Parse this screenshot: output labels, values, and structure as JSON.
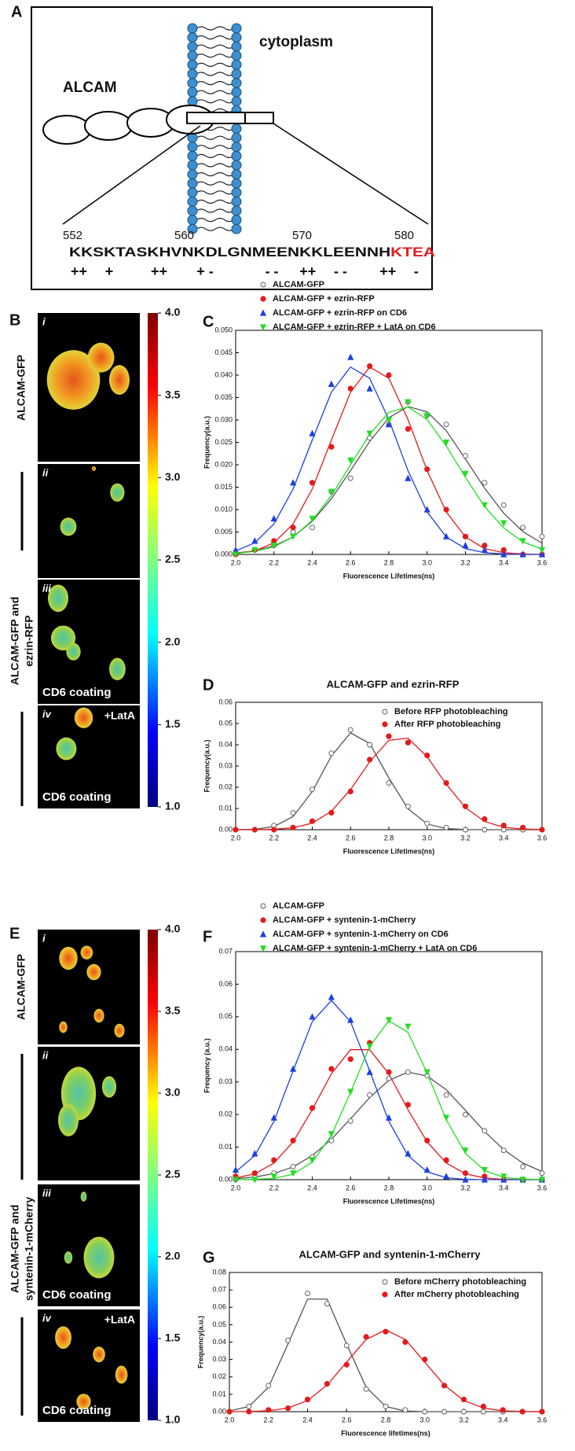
{
  "diagram": {
    "label": "A",
    "region": "cytoplasm",
    "protein": "ALCAM",
    "residue_numbers": [
      552,
      560,
      570,
      580
    ],
    "sequence": "KKSKTASKHVNKDLGNMEENKKLEENNH",
    "sequence_highlight": "KTEA",
    "charges": [
      "++",
      "+",
      "++",
      "+ -",
      "- -",
      "++",
      "- -",
      "++",
      "-"
    ]
  },
  "image_panels": [
    {
      "label": "B",
      "side_labels": [
        [
          "ALCAM-GFP"
        ],
        [
          "ALCAM-GFP and",
          "ezrin-RFP"
        ]
      ],
      "images": [
        {
          "numeral": "i"
        },
        {
          "numeral": "ii"
        },
        {
          "numeral": "iii",
          "note": "CD6 coating"
        },
        {
          "numeral": "iv",
          "treatment": "+LatA",
          "note": "CD6 coating"
        }
      ],
      "colorbar_ticks": [
        {
          "value": 4,
          "label": "4.0"
        },
        {
          "value": 3.5,
          "label": "3.5"
        },
        {
          "value": 3,
          "label": "3.0"
        },
        {
          "value": 2.5,
          "label": "2.5"
        },
        {
          "value": 2,
          "label": "2.0"
        },
        {
          "value": 1.5,
          "label": "1.5"
        },
        {
          "value": 1,
          "label": "1.0"
        }
      ]
    },
    {
      "label": "E",
      "side_labels": [
        [
          "ALCAM-GFP"
        ],
        [
          "ALCAM-GFP and",
          "syntenin-1-mCherry"
        ]
      ],
      "images": [
        {
          "numeral": "i"
        },
        {
          "numeral": "ii"
        },
        {
          "numeral": "iii",
          "note": "CD6 coating"
        },
        {
          "numeral": "iv",
          "treatment": "+LatA",
          "note": "CD6 coating"
        }
      ],
      "colorbar_ticks": [
        {
          "value": 4,
          "label": "4.0"
        },
        {
          "value": 3.5,
          "label": "3.5"
        },
        {
          "value": 3,
          "label": "3.0"
        },
        {
          "value": 2.5,
          "label": "2.5"
        },
        {
          "value": 2,
          "label": "2.0"
        },
        {
          "value": 1.5,
          "label": "1.5"
        },
        {
          "value": 1,
          "label": "1.0"
        }
      ]
    }
  ],
  "chart_data": [
    {
      "type": "scatter",
      "panel": "C",
      "x_label": "Fluorescence Lifetimes(ns)",
      "y_label": "Frequency(a.u.)",
      "legend": "top-left",
      "x": [
        2.0,
        2.1,
        2.2,
        2.3,
        2.4,
        2.5,
        2.6,
        2.7,
        2.8,
        2.9,
        3.0,
        3.1,
        3.2,
        3.3,
        3.4,
        3.5,
        3.6
      ],
      "xlim": [
        2.0,
        3.6
      ],
      "ylim": [
        0,
        0.05
      ],
      "xticks": [
        {
          "value": 2,
          "label": "2.0"
        },
        {
          "value": 2.2,
          "label": "2.2"
        },
        {
          "value": 2.4,
          "label": "2.4"
        },
        {
          "value": 2.6,
          "label": "2.6"
        },
        {
          "value": 2.8,
          "label": "2.8"
        },
        {
          "value": 3,
          "label": "3.0"
        },
        {
          "value": 3.2,
          "label": "3.2"
        },
        {
          "value": 3.4,
          "label": "3.4"
        },
        {
          "value": 3.6,
          "label": "3.6"
        }
      ],
      "yticks": [
        {
          "value": 0,
          "label": "0.000"
        },
        {
          "value": 0.005,
          "label": "0.005"
        },
        {
          "value": 0.01,
          "label": "0.010"
        },
        {
          "value": 0.015,
          "label": "0.015"
        },
        {
          "value": 0.02,
          "label": "0.020"
        },
        {
          "value": 0.025,
          "label": "0.025"
        },
        {
          "value": 0.03,
          "label": "0.030"
        },
        {
          "value": 0.035,
          "label": "0.035"
        },
        {
          "value": 0.04,
          "label": "0.040"
        },
        {
          "value": 0.045,
          "label": "0.045"
        },
        {
          "value": 0.05,
          "label": "0.050"
        }
      ],
      "series": [
        {
          "name": "ALCAM-GFP",
          "color": "#555555",
          "marker": "circle-open",
          "values": [
            0.0,
            0.001,
            0.002,
            0.005,
            0.006,
            0.014,
            0.017,
            0.026,
            0.029,
            0.034,
            0.031,
            0.029,
            0.022,
            0.016,
            0.011,
            0.006,
            0.004
          ],
          "fit": [
            0.0003,
            0.0008,
            0.0019,
            0.0039,
            0.0074,
            0.0124,
            0.0187,
            0.0252,
            0.0305,
            0.033,
            0.0318,
            0.0276,
            0.0213,
            0.0148,
            0.0092,
            0.0051,
            0.0025
          ]
        },
        {
          "name": "ALCAM-GFP + ezrin-RFP",
          "color": "#e41a1c",
          "marker": "circle",
          "values": [
            0.0,
            0.001,
            0.003,
            0.006,
            0.016,
            0.024,
            0.037,
            0.042,
            0.04,
            0.028,
            0.019,
            0.01,
            0.004,
            0.002,
            0.001,
            0.0,
            0.0
          ],
          "fit": [
            0.0002,
            0.0008,
            0.0026,
            0.0068,
            0.0146,
            0.0255,
            0.0362,
            0.0418,
            0.0393,
            0.0301,
            0.0187,
            0.0095,
            0.0039,
            0.0013,
            0.0004,
            0.0001,
            0
          ]
        },
        {
          "name": "ALCAM-GFP + ezrin-RFP on CD6",
          "color": "#1f3fe0",
          "marker": "triangle-up",
          "values": [
            0.001,
            0.003,
            0.008,
            0.016,
            0.027,
            0.038,
            0.044,
            0.037,
            0.029,
            0.017,
            0.01,
            0.004,
            0.002,
            0.001,
            0.0,
            0.0,
            0.0
          ],
          "fit": [
            0.0008,
            0.0026,
            0.0068,
            0.0146,
            0.0255,
            0.0362,
            0.0418,
            0.0393,
            0.0301,
            0.0187,
            0.0095,
            0.0039,
            0.0013,
            0.0004,
            0.0001,
            0,
            0
          ]
        },
        {
          "name": "ALCAM-GFP + ezrin-RFP + LatA on CD6",
          "color": "#22dd22",
          "marker": "triangle-down",
          "values": [
            0.0,
            0.001,
            0.002,
            0.004,
            0.008,
            0.014,
            0.021,
            0.027,
            0.03,
            0.034,
            0.031,
            0.025,
            0.018,
            0.011,
            0.007,
            0.003,
            0.001
          ],
          "fit": [
            0.0002,
            0.0007,
            0.0017,
            0.0039,
            0.0076,
            0.0131,
            0.02,
            0.0268,
            0.0317,
            0.0329,
            0.0301,
            0.0242,
            0.0172,
            0.0107,
            0.0059,
            0.0028,
            0.0012
          ]
        }
      ]
    },
    {
      "type": "scatter",
      "panel": "D",
      "title": "ALCAM-GFP and ezrin-RFP",
      "x_label": "Fluorescence Lifetimes(ns)",
      "y_label": "Frequency(a.u.)",
      "legend": "top-right",
      "x": [
        2.0,
        2.1,
        2.2,
        2.3,
        2.4,
        2.5,
        2.6,
        2.7,
        2.8,
        2.9,
        3.0,
        3.1,
        3.2,
        3.3,
        3.4,
        3.5,
        3.6
      ],
      "xlim": [
        2.0,
        3.6
      ],
      "ylim": [
        0,
        0.06
      ],
      "xticks": [
        {
          "value": 2,
          "label": "2.0"
        },
        {
          "value": 2.2,
          "label": "2.2"
        },
        {
          "value": 2.4,
          "label": "2.4"
        },
        {
          "value": 2.6,
          "label": "2.6"
        },
        {
          "value": 2.8,
          "label": "2.8"
        },
        {
          "value": 3,
          "label": "3.0"
        },
        {
          "value": 3.2,
          "label": "3.2"
        },
        {
          "value": 3.4,
          "label": "3.4"
        },
        {
          "value": 3.6,
          "label": "3.6"
        }
      ],
      "yticks": [
        {
          "value": 0,
          "label": "0.00"
        },
        {
          "value": 0.01,
          "label": "0.01"
        },
        {
          "value": 0.02,
          "label": "0.02"
        },
        {
          "value": 0.03,
          "label": "0.03"
        },
        {
          "value": 0.04,
          "label": "0.04"
        },
        {
          "value": 0.05,
          "label": "0.05"
        },
        {
          "value": 0.06,
          "label": "0.06"
        }
      ],
      "series": [
        {
          "name": "Before RFP photobleaching",
          "color": "#555555",
          "marker": "circle-open",
          "values": [
            0.0,
            0.0,
            0.002,
            0.008,
            0.019,
            0.036,
            0.047,
            0.04,
            0.022,
            0.011,
            0.003,
            0.001,
            0.0,
            0.0,
            0.0,
            0.0,
            0.0
          ],
          "fit": [
            0,
            0.0002,
            0.0015,
            0.0062,
            0.0179,
            0.0347,
            0.0456,
            0.0406,
            0.0244,
            0.0099,
            0.0027,
            0.0005,
            0.0001,
            0,
            0,
            0,
            0
          ]
        },
        {
          "name": "After RFP photobleaching",
          "color": "#e41a1c",
          "marker": "circle",
          "values": [
            0.0,
            0.0,
            0.0,
            0.001,
            0.004,
            0.008,
            0.018,
            0.033,
            0.044,
            0.041,
            0.035,
            0.022,
            0.011,
            0.005,
            0.002,
            0.001,
            0.0
          ],
          "fit": [
            0,
            0,
            0.0002,
            0.0009,
            0.0031,
            0.0087,
            0.0189,
            0.032,
            0.0421,
            0.0431,
            0.0344,
            0.0214,
            0.0104,
            0.0039,
            0.0011,
            0.0003,
            0.0001
          ]
        }
      ]
    },
    {
      "type": "scatter",
      "panel": "F",
      "x_label": "Fluorescence Lifetimes(ns)",
      "y_label": "Frequency (a.u.)",
      "legend": "top-left",
      "x": [
        2.0,
        2.1,
        2.2,
        2.3,
        2.4,
        2.5,
        2.6,
        2.7,
        2.8,
        2.9,
        3.0,
        3.1,
        3.2,
        3.3,
        3.4,
        3.5,
        3.6
      ],
      "xlim": [
        2.0,
        3.6
      ],
      "ylim": [
        0,
        0.07
      ],
      "xticks": [
        {
          "value": 2,
          "label": "2.0"
        },
        {
          "value": 2.2,
          "label": "2.2"
        },
        {
          "value": 2.4,
          "label": "2.4"
        },
        {
          "value": 2.6,
          "label": "2.6"
        },
        {
          "value": 2.8,
          "label": "2.8"
        },
        {
          "value": 3,
          "label": "3.0"
        },
        {
          "value": 3.2,
          "label": "3.2"
        },
        {
          "value": 3.4,
          "label": "3.4"
        },
        {
          "value": 3.6,
          "label": "3.6"
        }
      ],
      "yticks": [
        {
          "value": 0,
          "label": "0.00"
        },
        {
          "value": 0.01,
          "label": "0.01"
        },
        {
          "value": 0.02,
          "label": "0.02"
        },
        {
          "value": 0.03,
          "label": "0.03"
        },
        {
          "value": 0.04,
          "label": "0.04"
        },
        {
          "value": 0.05,
          "label": "0.05"
        },
        {
          "value": 0.06,
          "label": "0.06"
        },
        {
          "value": 0.07,
          "label": "0.07"
        }
      ],
      "series": [
        {
          "name": "ALCAM-GFP",
          "color": "#555555",
          "marker": "circle-open",
          "values": [
            0.0,
            0.001,
            0.002,
            0.004,
            0.007,
            0.012,
            0.018,
            0.026,
            0.031,
            0.033,
            0.032,
            0.026,
            0.02,
            0.015,
            0.009,
            0.004,
            0.002
          ],
          "fit": [
            0.0003,
            0.0008,
            0.0019,
            0.0039,
            0.0074,
            0.0124,
            0.0187,
            0.0252,
            0.0305,
            0.033,
            0.0318,
            0.0276,
            0.0213,
            0.0148,
            0.0092,
            0.0051,
            0.0025
          ]
        },
        {
          "name": "ALCAM-GFP + syntenin-1-mCherry",
          "color": "#e41a1c",
          "marker": "circle",
          "values": [
            0.001,
            0.002,
            0.006,
            0.012,
            0.022,
            0.034,
            0.037,
            0.042,
            0.033,
            0.023,
            0.012,
            0.006,
            0.002,
            0.001,
            0.0,
            0.0,
            0.0
          ],
          "fit": [
            0.0005,
            0.0018,
            0.0051,
            0.0116,
            0.0215,
            0.0325,
            0.0399,
            0.0399,
            0.0325,
            0.0215,
            0.0116,
            0.0051,
            0.0018,
            0.0005,
            0.0001,
            0,
            0
          ]
        },
        {
          "name": "ALCAM-GFP + syntenin-1-mCherry on CD6",
          "color": "#1f3fe0",
          "marker": "triangle-up",
          "values": [
            0.003,
            0.008,
            0.019,
            0.034,
            0.05,
            0.056,
            0.049,
            0.033,
            0.019,
            0.008,
            0.003,
            0.001,
            0.0,
            0.0,
            0.0,
            0.0,
            0.0
          ],
          "fit": [
            0.0024,
            0.0074,
            0.0179,
            0.0334,
            0.0485,
            0.055,
            0.0485,
            0.0334,
            0.0179,
            0.0074,
            0.0024,
            0.0006,
            0.0001,
            0,
            0,
            0,
            0
          ]
        },
        {
          "name": "ALCAM-GFP + syntenin-1-mCherry + LatA on CD6",
          "color": "#22dd22",
          "marker": "triangle-down",
          "values": [
            0.0,
            0.0,
            0.001,
            0.002,
            0.006,
            0.014,
            0.027,
            0.041,
            0.049,
            0.047,
            0.033,
            0.019,
            0.009,
            0.003,
            0.001,
            0.0,
            0.0
          ],
          "fit": [
            0,
            0.0001,
            0.0004,
            0.0017,
            0.0054,
            0.0136,
            0.0268,
            0.0409,
            0.0488,
            0.0452,
            0.0327,
            0.0184,
            0.0081,
            0.0028,
            0.0007,
            0.0002,
            0
          ]
        }
      ]
    },
    {
      "type": "scatter",
      "panel": "G",
      "title": "ALCAM-GFP and syntenin-1-mCherry",
      "x_label": "Fluorescence lifetimes(ns)",
      "y_label": "Frequency(a.u.)",
      "legend": "top-right",
      "x": [
        2.0,
        2.1,
        2.2,
        2.3,
        2.4,
        2.5,
        2.6,
        2.7,
        2.8,
        2.9,
        3.0,
        3.1,
        3.2,
        3.3,
        3.4,
        3.5,
        3.6
      ],
      "xlim": [
        2.0,
        3.6
      ],
      "ylim": [
        0,
        0.08
      ],
      "xticks": [
        {
          "value": 2,
          "label": "2.0"
        },
        {
          "value": 2.2,
          "label": "2.2"
        },
        {
          "value": 2.4,
          "label": "2.4"
        },
        {
          "value": 2.6,
          "label": "2.6"
        },
        {
          "value": 2.8,
          "label": "2.8"
        },
        {
          "value": 3,
          "label": "3.0"
        },
        {
          "value": 3.2,
          "label": "3.2"
        },
        {
          "value": 3.4,
          "label": "3.4"
        },
        {
          "value": 3.6,
          "label": "3.6"
        }
      ],
      "yticks": [
        {
          "value": 0,
          "label": "0.00"
        },
        {
          "value": 0.01,
          "label": "0.01"
        },
        {
          "value": 0.02,
          "label": "0.02"
        },
        {
          "value": 0.03,
          "label": "0.03"
        },
        {
          "value": 0.04,
          "label": "0.04"
        },
        {
          "value": 0.05,
          "label": "0.05"
        },
        {
          "value": 0.06,
          "label": "0.06"
        },
        {
          "value": 0.07,
          "label": "0.07"
        },
        {
          "value": 0.08,
          "label": "0.08"
        }
      ],
      "series": [
        {
          "name": "Before mCherry photobleaching",
          "color": "#555555",
          "marker": "circle-open",
          "values": [
            0.0,
            0.003,
            0.015,
            0.041,
            0.068,
            0.062,
            0.038,
            0.013,
            0.003,
            0.001,
            0.0,
            0.0,
            0.0,
            0.0,
            0.0,
            0.0,
            0.0
          ],
          "fit": [
            0.0004,
            0.003,
            0.014,
            0.0389,
            0.0647,
            0.0647,
            0.0389,
            0.014,
            0.003,
            0.0004,
            0,
            0,
            0,
            0,
            0,
            0,
            0
          ]
        },
        {
          "name": "After mCherry photobleaching",
          "color": "#e41a1c",
          "marker": "circle",
          "values": [
            0.0,
            0.0,
            0.001,
            0.002,
            0.007,
            0.016,
            0.027,
            0.043,
            0.046,
            0.04,
            0.03,
            0.015,
            0.007,
            0.003,
            0.001,
            0.0,
            0.0
          ],
          "fit": [
            0,
            0.0001,
            0.0005,
            0.0021,
            0.0064,
            0.0153,
            0.0285,
            0.0415,
            0.047,
            0.0415,
            0.0285,
            0.0153,
            0.0064,
            0.0021,
            0.0005,
            0.0001,
            0
          ]
        }
      ]
    }
  ]
}
